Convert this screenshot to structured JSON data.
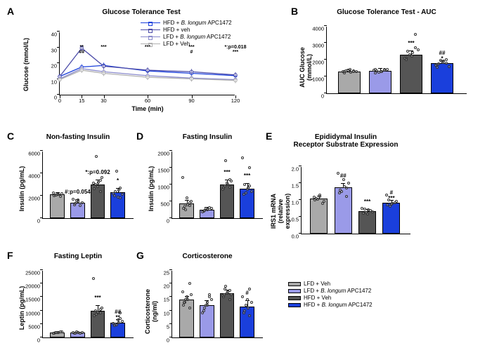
{
  "colors": {
    "lfd_veh": "#a9a9a9",
    "lfd_apc": "#9a9ae8",
    "hfd_veh": "#555555",
    "hfd_apc": "#1a3fdc",
    "line_hfd_apc": "#1a3fdc",
    "line_hfd_veh": "#4a4aa8",
    "line_lfd_apc": "#8a8acc",
    "line_lfd_veh": "#b0b0b0"
  },
  "groups": [
    "LFD + Veh",
    "LFD + B. longum APC1472",
    "HFD + Veh",
    "HFD + B. longum APC1472"
  ],
  "A": {
    "letter": "A",
    "title": "Glucose Tolerance Test",
    "ylabel": "Glucose (mmol/L)",
    "xlabel": "Time (min)",
    "ylim": [
      0,
      40
    ],
    "ytick": 10,
    "x": [
      0,
      15,
      30,
      60,
      90,
      120
    ],
    "series": [
      {
        "name": "HFD + B. longum APC1472",
        "color": "line_hfd_apc",
        "y": [
          12,
          18,
          19,
          15.5,
          14,
          12.5
        ],
        "sig": [
          "",
          "**",
          "***",
          "***",
          "***",
          "*:p=0.018"
        ]
      },
      {
        "name": "HFD + veh",
        "color": "line_hfd_veh",
        "y": [
          12,
          30,
          18.5,
          16,
          15,
          13
        ],
        "sig": [
          "",
          "##",
          "",
          "",
          "#",
          ""
        ]
      },
      {
        "name": "LFD + B. longum APC1472",
        "color": "line_lfd_apc",
        "y": [
          10.5,
          17,
          15,
          12.5,
          11,
          10
        ],
        "sig": [
          "",
          "",
          "",
          "",
          "",
          ""
        ]
      },
      {
        "name": "LFD + Veh",
        "color": "line_lfd_veh",
        "y": [
          10,
          16,
          14,
          11.5,
          10.5,
          9.5
        ],
        "sig": [
          "",
          "",
          "",
          "",
          "",
          "***"
        ]
      }
    ]
  },
  "B": {
    "letter": "B",
    "title": "Glucose Tolerance Test - AUC",
    "ylabel": "AUC Glucose (mmol/L)",
    "ylim": [
      0,
      4000
    ],
    "ytick": 1000,
    "bars": [
      1300,
      1350,
      2300,
      1800
    ],
    "err": [
      80,
      100,
      200,
      120
    ],
    "sig": [
      "",
      "",
      "***",
      "##\n*"
    ],
    "scatter": [
      [
        1200,
        1250,
        1300,
        1350,
        1400,
        1320,
        1280,
        1360,
        1310,
        1290
      ],
      [
        1200,
        1300,
        1400,
        1350,
        1280,
        1420,
        1360,
        1250,
        1390,
        1410
      ],
      [
        2100,
        2400,
        2600,
        2500,
        2200,
        2700,
        2100,
        2300,
        3500,
        2000
      ],
      [
        1700,
        1900,
        1600,
        1750,
        1850,
        1800,
        1650,
        1950,
        2000,
        1550
      ]
    ]
  },
  "C": {
    "letter": "C",
    "title": "Non-fasting Insulin",
    "ylabel": "Insulin (pg/mL)",
    "ylim": [
      0,
      6000
    ],
    "ytick": 2000,
    "bars": [
      2100,
      1400,
      3000,
      2300
    ],
    "err": [
      150,
      200,
      400,
      300
    ],
    "sig": [
      "",
      "#:p=0.054",
      "*:p=0.092",
      "*"
    ],
    "scatter": [
      [
        2000,
        2100,
        2200,
        2050,
        2150,
        1950,
        2250,
        2080
      ],
      [
        1200,
        1600,
        1400,
        1300,
        1500,
        1100,
        1700,
        1550
      ],
      [
        2600,
        3200,
        3600,
        3000,
        2800,
        3400,
        3100,
        5500,
        2400
      ],
      [
        2000,
        2500,
        2100,
        2400,
        1900,
        2700,
        2200,
        4200,
        1800
      ]
    ]
  },
  "D": {
    "letter": "D",
    "title": "Fasting Insulin",
    "ylabel": "Insulin (pg/mL)",
    "ylim": [
      0,
      2000
    ],
    "ytick": 500,
    "bars": [
      430,
      260,
      1000,
      880
    ],
    "err": [
      100,
      60,
      120,
      150
    ],
    "sig": [
      "",
      "",
      "***",
      "***"
    ],
    "scatter": [
      [
        300,
        400,
        500,
        350,
        600,
        450,
        1200,
        250,
        380
      ],
      [
        200,
        250,
        300,
        220,
        280,
        320,
        180,
        290
      ],
      [
        900,
        1000,
        1100,
        950,
        1050,
        1150,
        850,
        1700,
        920
      ],
      [
        700,
        900,
        800,
        1000,
        850,
        950,
        1800,
        750,
        1500
      ]
    ]
  },
  "E": {
    "letter": "E",
    "title": "Epididymal Insulin\nReceptor Substrate Expression",
    "ylabel": "IRS1 mRNA\n(relative expression)",
    "ylim": [
      0,
      2.0
    ],
    "ytick": 0.5,
    "bars": [
      1.05,
      1.38,
      0.67,
      0.92
    ],
    "err": [
      0.06,
      0.1,
      0.04,
      0.05
    ],
    "sig": [
      "",
      "##",
      "***",
      "#\n***"
    ],
    "scatter": [
      [
        1.0,
        1.1,
        0.95,
        1.05,
        1.15,
        0.9,
        1.08,
        1.02
      ],
      [
        1.2,
        1.4,
        1.5,
        1.3,
        1.6,
        1.35,
        1.8,
        1.25,
        1.1
      ],
      [
        0.6,
        0.7,
        0.65,
        0.72,
        0.58,
        0.68,
        0.75,
        0.62
      ],
      [
        0.85,
        0.9,
        0.95,
        1.0,
        0.88,
        0.92,
        1.15,
        0.82
      ]
    ]
  },
  "F": {
    "letter": "F",
    "title": "Fasting Leptin",
    "ylabel": "Leptin (pg/mL)",
    "ylim": [
      0,
      25000
    ],
    "ytick": 5000,
    "bars": [
      1800,
      1700,
      9800,
      5600
    ],
    "err": [
      200,
      200,
      1800,
      900
    ],
    "sig": [
      "",
      "",
      "***",
      "##\n**"
    ],
    "scatter": [
      [
        1600,
        1800,
        2000,
        1700,
        1900,
        2100,
        1500,
        1850
      ],
      [
        1500,
        1700,
        1800,
        1600,
        1900,
        1650,
        1750,
        2000
      ],
      [
        8000,
        9000,
        11000,
        10000,
        9500,
        10500,
        22000,
        8500,
        9200
      ],
      [
        4500,
        5500,
        6000,
        5000,
        6500,
        7000,
        5200,
        4800,
        9000
      ]
    ]
  },
  "G": {
    "letter": "G",
    "title": "Corticosterone",
    "ylabel": "Corticosterone (ng/ml)",
    "ylim": [
      0,
      25
    ],
    "ytick": 5,
    "bars": [
      14,
      12,
      16.5,
      11.5
    ],
    "err": [
      1.2,
      1.5,
      1,
      2
    ],
    "sig": [
      "",
      "",
      "",
      "#"
    ],
    "scatter": [
      [
        12,
        14,
        16,
        13,
        15,
        11,
        17,
        14,
        20,
        13
      ],
      [
        10,
        12,
        14,
        11,
        13,
        15,
        9,
        12,
        16
      ],
      [
        15,
        17,
        16,
        18,
        16.5,
        17.5,
        15.5,
        19,
        14,
        16
      ],
      [
        9,
        11,
        13,
        10,
        14,
        8,
        15,
        12,
        18
      ]
    ]
  },
  "legend_bars": {
    "items": [
      "LFD + Veh",
      "LFD + B. longum APC1472",
      "HFD + Veh",
      "HFD + B. longum APC1472"
    ]
  }
}
